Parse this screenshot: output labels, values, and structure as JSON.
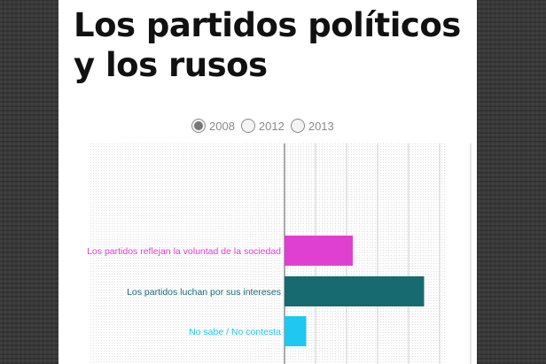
{
  "article": {
    "title": "Los partidos políticos y los rusos"
  },
  "year_selector": {
    "options": [
      {
        "label": "2008",
        "selected": true
      },
      {
        "label": "2012",
        "selected": false
      },
      {
        "label": "2013",
        "selected": false
      }
    ]
  },
  "colors": {
    "page_background": "#3a3a3a",
    "card": "#ffffff",
    "grid": "#cfcfcf"
  },
  "chart_data": {
    "type": "bar",
    "orientation": "horizontal",
    "grid": true,
    "xlim": [
      0,
      70
    ],
    "categories": [
      "Los partidos reflejan la voluntad de la sociedad",
      "Los partidos luchan por sus intereses",
      "No sabe / No contesta"
    ],
    "values": [
      22,
      45,
      7
    ],
    "colors": [
      "#e040d0",
      "#176b70",
      "#1fc8f0"
    ]
  }
}
